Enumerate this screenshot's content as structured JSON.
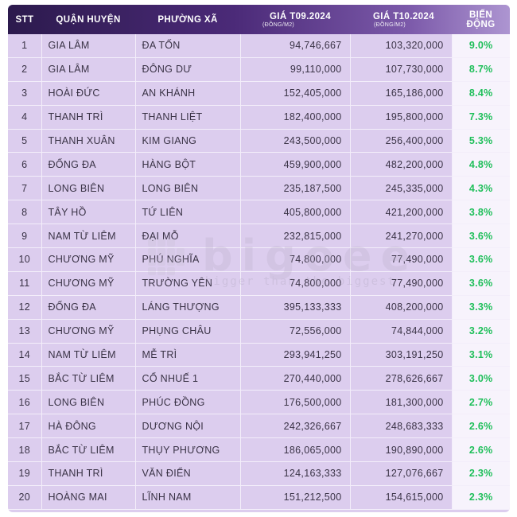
{
  "headers": {
    "stt": "STT",
    "district": "QUẬN HUYỆN",
    "ward": "PHƯỜNG XÃ",
    "price_sep": "GIÁ T09.2024",
    "price_sep_unit": "(ĐỒNG/M2)",
    "price_oct": "GIÁ T10.2024",
    "price_oct_unit": "(ĐỒNG/M2)",
    "change": "BIẾN ĐỘNG"
  },
  "rows": [
    {
      "stt": "1",
      "district": "GIA LÂM",
      "ward": "ĐA TỐN",
      "price_sep": "94,746,667",
      "price_oct": "103,320,000",
      "change": "9.0%"
    },
    {
      "stt": "2",
      "district": "GIA LÂM",
      "ward": "ĐÔNG DƯ",
      "price_sep": "99,110,000",
      "price_oct": "107,730,000",
      "change": "8.7%"
    },
    {
      "stt": "3",
      "district": "HOÀI ĐỨC",
      "ward": "AN KHÁNH",
      "price_sep": "152,405,000",
      "price_oct": "165,186,000",
      "change": "8.4%"
    },
    {
      "stt": "4",
      "district": "THANH TRÌ",
      "ward": "THANH LIỆT",
      "price_sep": "182,400,000",
      "price_oct": "195,800,000",
      "change": "7.3%"
    },
    {
      "stt": "5",
      "district": "THANH XUÂN",
      "ward": "KIM GIANG",
      "price_sep": "243,500,000",
      "price_oct": "256,400,000",
      "change": "5.3%"
    },
    {
      "stt": "6",
      "district": "ĐỐNG ĐA",
      "ward": "HÀNG BỘT",
      "price_sep": "459,900,000",
      "price_oct": "482,200,000",
      "change": "4.8%"
    },
    {
      "stt": "7",
      "district": "LONG BIÊN",
      "ward": "LONG BIÊN",
      "price_sep": "235,187,500",
      "price_oct": "245,335,000",
      "change": "4.3%"
    },
    {
      "stt": "8",
      "district": "TÂY HỒ",
      "ward": "TỨ LIÊN",
      "price_sep": "405,800,000",
      "price_oct": "421,200,000",
      "change": "3.8%"
    },
    {
      "stt": "9",
      "district": "NAM TỪ LIÊM",
      "ward": "ĐẠI MỖ",
      "price_sep": "232,815,000",
      "price_oct": "241,270,000",
      "change": "3.6%"
    },
    {
      "stt": "10",
      "district": "CHƯƠNG MỸ",
      "ward": "PHÚ NGHĨA",
      "price_sep": "74,800,000",
      "price_oct": "77,490,000",
      "change": "3.6%"
    },
    {
      "stt": "11",
      "district": "CHƯƠNG MỸ",
      "ward": "TRƯỜNG YÊN",
      "price_sep": "74,800,000",
      "price_oct": "77,490,000",
      "change": "3.6%"
    },
    {
      "stt": "12",
      "district": "ĐỐNG ĐA",
      "ward": "LÁNG THƯỢNG",
      "price_sep": "395,133,333",
      "price_oct": "408,200,000",
      "change": "3.3%"
    },
    {
      "stt": "13",
      "district": "CHƯƠNG MỸ",
      "ward": "PHỤNG CHÂU",
      "price_sep": "72,556,000",
      "price_oct": "74,844,000",
      "change": "3.2%"
    },
    {
      "stt": "14",
      "district": "NAM TỪ LIÊM",
      "ward": "MỄ TRÌ",
      "price_sep": "293,941,250",
      "price_oct": "303,191,250",
      "change": "3.1%"
    },
    {
      "stt": "15",
      "district": "BẮC TỪ LIÊM",
      "ward": "CỔ NHUẾ 1",
      "price_sep": "270,440,000",
      "price_oct": "278,626,667",
      "change": "3.0%"
    },
    {
      "stt": "16",
      "district": "LONG BIÊN",
      "ward": "PHÚC ĐỒNG",
      "price_sep": "176,500,000",
      "price_oct": "181,300,000",
      "change": "2.7%"
    },
    {
      "stt": "17",
      "district": "HÀ ĐÔNG",
      "ward": "DƯƠNG NỘI",
      "price_sep": "242,326,667",
      "price_oct": "248,683,333",
      "change": "2.6%"
    },
    {
      "stt": "18",
      "district": "BẮC TỪ LIÊM",
      "ward": "THỤY PHƯƠNG",
      "price_sep": "186,065,000",
      "price_oct": "190,890,000",
      "change": "2.6%"
    },
    {
      "stt": "19",
      "district": "THANH TRÌ",
      "ward": "VĂN ĐIỂN",
      "price_sep": "124,163,333",
      "price_oct": "127,076,667",
      "change": "2.3%"
    },
    {
      "stt": "20",
      "district": "HOÀNG MAI",
      "ward": "LĨNH NAM",
      "price_sep": "151,212,500",
      "price_oct": "154,615,000",
      "change": "2.3%"
    }
  ],
  "watermark": {
    "brand": "bigoee",
    "tagline": "bigger than the biggest",
    "icon": "bigoee-logo-icon"
  },
  "colors": {
    "header_start": "#2c1a4d",
    "header_end": "#ad95d1",
    "row_bg": "#dccdee",
    "change_text": "#1fbf5a"
  }
}
